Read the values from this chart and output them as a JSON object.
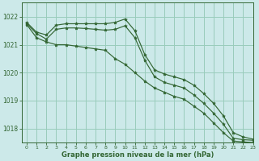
{
  "background_color": "#cce9e9",
  "grid_color": "#99ccbb",
  "line_color": "#336633",
  "marker_color": "#336633",
  "xlabel": "Graphe pression niveau de la mer (hPa)",
  "xlim": [
    -0.5,
    23
  ],
  "ylim": [
    1017.5,
    1022.5
  ],
  "yticks": [
    1018,
    1019,
    1020,
    1021,
    1022
  ],
  "xticks": [
    0,
    1,
    2,
    3,
    4,
    5,
    6,
    7,
    8,
    9,
    10,
    11,
    12,
    13,
    14,
    15,
    16,
    17,
    18,
    19,
    20,
    21,
    22,
    23
  ],
  "series": [
    [
      1021.8,
      1021.45,
      1021.35,
      1021.7,
      1021.75,
      1021.75,
      1021.75,
      1021.75,
      1021.75,
      1021.8,
      1021.92,
      1021.5,
      1020.65,
      1020.1,
      1019.95,
      1019.85,
      1019.75,
      1019.55,
      1019.25,
      1018.9,
      1018.45,
      1017.85,
      1017.7,
      1017.62
    ],
    [
      1021.75,
      1021.4,
      1021.2,
      1021.55,
      1021.6,
      1021.6,
      1021.58,
      1021.55,
      1021.52,
      1021.55,
      1021.68,
      1021.25,
      1020.45,
      1019.85,
      1019.65,
      1019.55,
      1019.45,
      1019.2,
      1018.9,
      1018.55,
      1018.15,
      1017.65,
      1017.6,
      1017.58
    ],
    [
      1021.72,
      1021.25,
      1021.1,
      1021.0,
      1021.0,
      1020.95,
      1020.9,
      1020.85,
      1020.8,
      1020.5,
      1020.3,
      1020.0,
      1019.7,
      1019.45,
      1019.3,
      1019.15,
      1019.05,
      1018.8,
      1018.55,
      1018.2,
      1017.85,
      1017.55,
      1017.52,
      1017.5
    ]
  ]
}
